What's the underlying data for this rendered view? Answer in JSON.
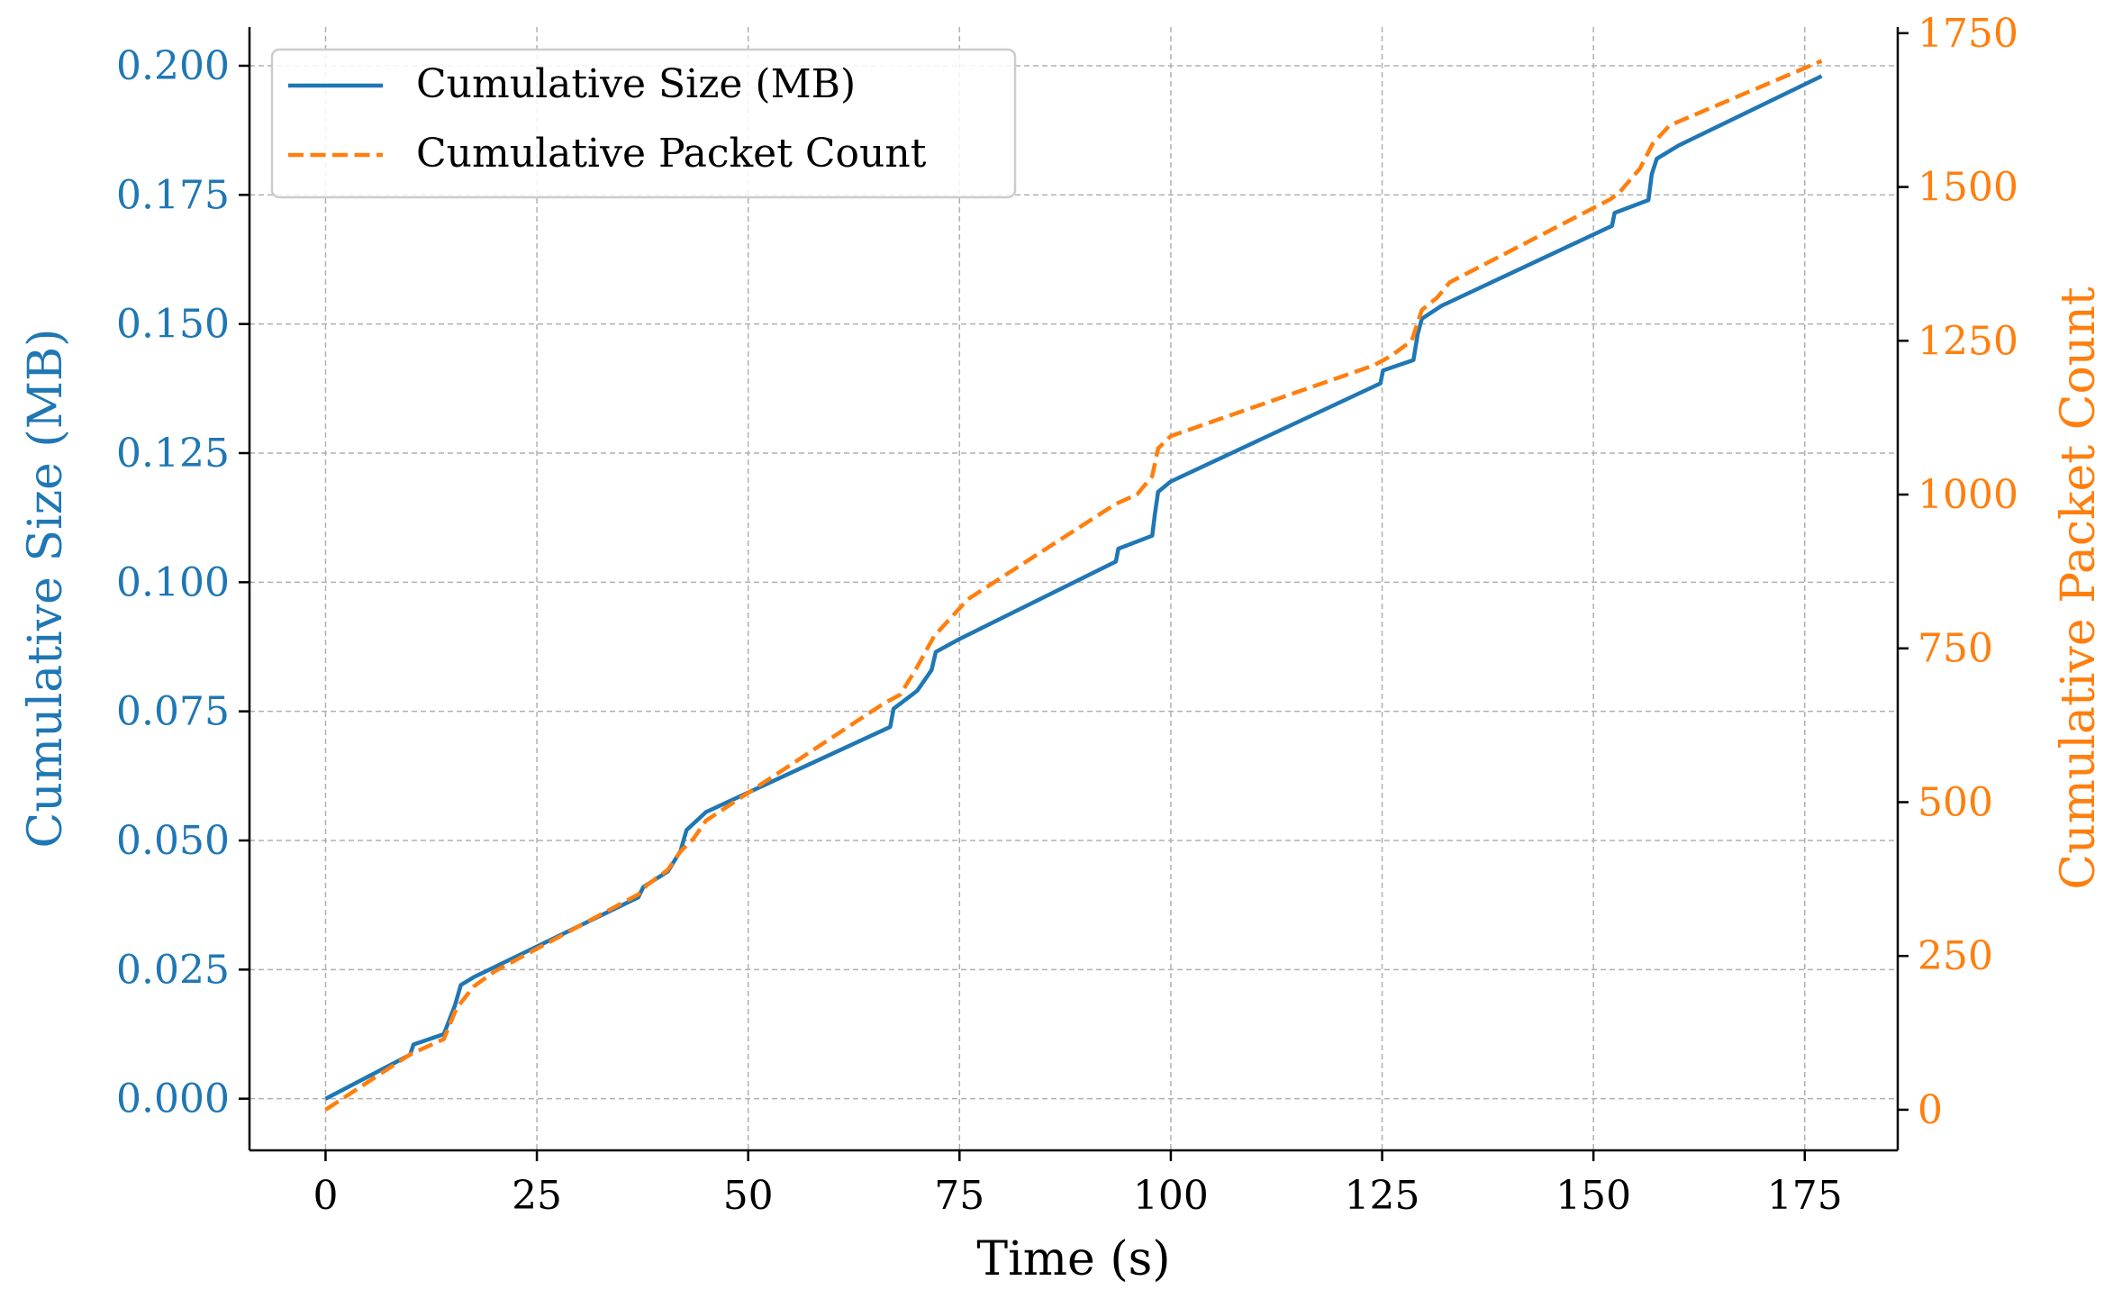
{
  "chart_data": {
    "type": "line",
    "title": "",
    "xlabel": "Time (s)",
    "ylabel_left": "Cumulative Size (MB)",
    "ylabel_right": "Cumulative Packet Count",
    "xlim": [
      -9,
      186
    ],
    "ylim_left": [
      -0.01,
      0.2075
    ],
    "ylim_right": [
      -66,
      1760
    ],
    "x_ticks": [
      0,
      25,
      50,
      75,
      100,
      125,
      150,
      175
    ],
    "x_tick_labels": [
      "0",
      "25",
      "50",
      "75",
      "100",
      "125",
      "150",
      "175"
    ],
    "y_left_ticks": [
      0.0,
      0.025,
      0.05,
      0.075,
      0.1,
      0.125,
      0.15,
      0.175,
      0.2
    ],
    "y_left_tick_labels": [
      "0.000",
      "0.025",
      "0.050",
      "0.075",
      "0.100",
      "0.125",
      "0.150",
      "0.175",
      "0.200"
    ],
    "y_right_ticks": [
      0,
      250,
      500,
      750,
      1000,
      1250,
      1500,
      1750
    ],
    "y_right_tick_labels": [
      "0",
      "250",
      "500",
      "750",
      "1000",
      "1250",
      "1500",
      "1750"
    ],
    "grid": true,
    "legend_position": "top-left",
    "series": [
      {
        "name": "Cumulative Size (MB)",
        "axis": "left",
        "style": "solid",
        "color": "#1f77b4",
        "x": [
          0,
          10,
          10.4,
          14,
          15.3,
          16,
          17.5,
          20,
          37,
          37.6,
          40.5,
          42,
          42.7,
          45,
          66.8,
          67.2,
          70,
          71.7,
          72.2,
          75,
          93.5,
          93.8,
          97.8,
          98.1,
          98.5,
          100,
          124.8,
          125.1,
          128.7,
          129.2,
          129.7,
          132,
          152.2,
          152.5,
          156.5,
          156.9,
          157.5,
          160,
          177
        ],
        "y": [
          0,
          0.0085,
          0.0105,
          0.0125,
          0.018,
          0.022,
          0.0235,
          0.0255,
          0.039,
          0.041,
          0.044,
          0.048,
          0.052,
          0.0555,
          0.072,
          0.0755,
          0.079,
          0.083,
          0.0865,
          0.089,
          0.104,
          0.1065,
          0.109,
          0.113,
          0.1175,
          0.1195,
          0.1385,
          0.141,
          0.143,
          0.148,
          0.151,
          0.1535,
          0.169,
          0.1715,
          0.174,
          0.179,
          0.182,
          0.1845,
          0.198
        ]
      },
      {
        "name": "Cumulative Packet Count",
        "axis": "right",
        "style": "dashed",
        "color": "#ff7f0e",
        "x": [
          0,
          10,
          14,
          15.5,
          17.5,
          20,
          37,
          38,
          40.5,
          42,
          43.5,
          45,
          66,
          68,
          70,
          72,
          74,
          76,
          93.5,
          96,
          97.8,
          98.5,
          100,
          124,
          126,
          128.5,
          129.7,
          131.5,
          133,
          152,
          153,
          155.5,
          157,
          159,
          177
        ],
        "y": [
          0,
          90,
          115,
          165,
          200,
          225,
          350,
          365,
          390,
          420,
          440,
          470,
          660,
          675,
          720,
          770,
          800,
          830,
          985,
          1000,
          1030,
          1075,
          1095,
          1210,
          1225,
          1250,
          1300,
          1320,
          1345,
          1480,
          1490,
          1530,
          1570,
          1600,
          1705
        ]
      }
    ]
  }
}
